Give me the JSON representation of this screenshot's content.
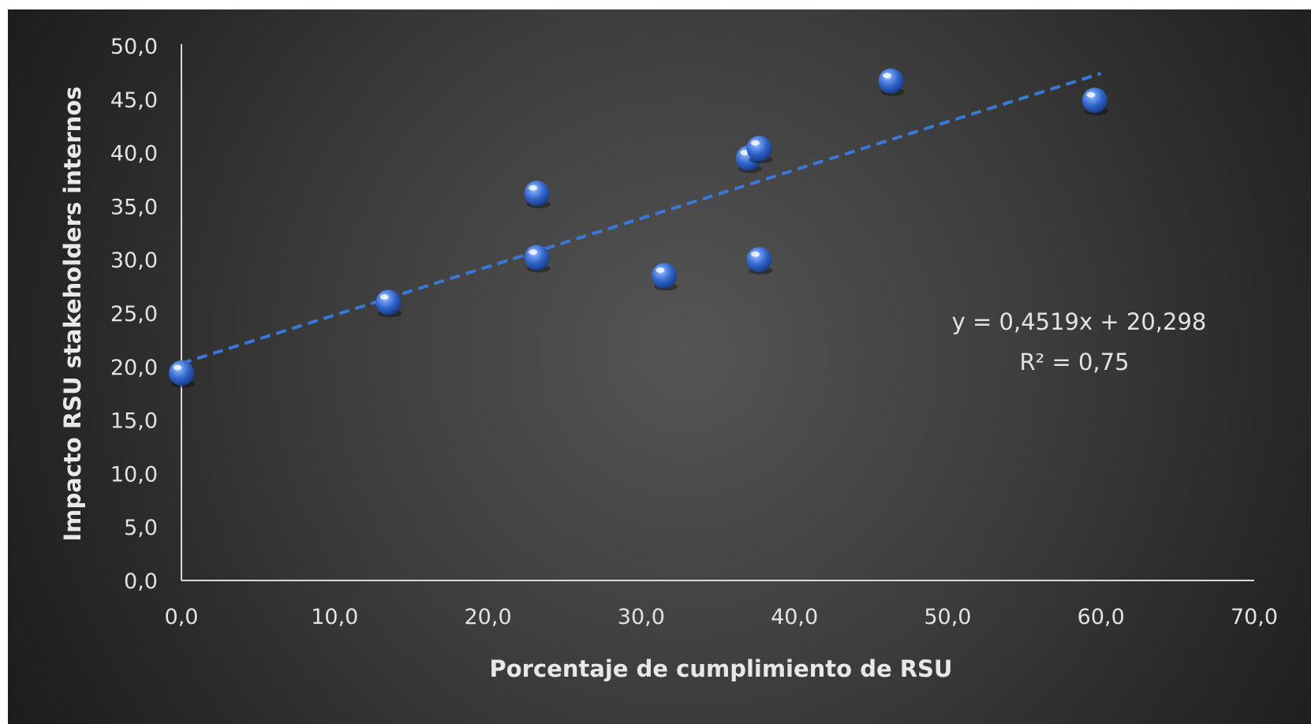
{
  "chart_data": {
    "type": "scatter",
    "title": "",
    "xlabel": "Porcentaje de cumplimiento de RSU",
    "ylabel": "Impacto RSU stakeholders internos",
    "xlim": [
      0,
      70
    ],
    "ylim": [
      0,
      50
    ],
    "x_ticks": [
      "0,0",
      "10,0",
      "20,0",
      "30,0",
      "40,0",
      "50,0",
      "60,0",
      "70,0"
    ],
    "y_ticks": [
      "0,0",
      "5,0",
      "10,0",
      "15,0",
      "20,0",
      "25,0",
      "30,0",
      "35,0",
      "40,0",
      "45,0",
      "50,0"
    ],
    "grid": false,
    "legend": "none",
    "series": [
      {
        "points": [
          [
            0.0,
            19.4
          ],
          [
            13.5,
            26.0
          ],
          [
            23.2,
            36.2
          ],
          [
            23.2,
            30.2
          ],
          [
            31.5,
            28.5
          ],
          [
            37.0,
            39.5
          ],
          [
            37.7,
            40.4
          ],
          [
            37.7,
            30.0
          ],
          [
            46.3,
            46.7
          ],
          [
            59.6,
            44.9
          ]
        ],
        "color": "#3e74d6"
      }
    ],
    "trendline": {
      "type": "linear",
      "slope": 0.4519,
      "intercept": 20.298,
      "x_range": [
        0,
        60
      ],
      "color": "#3a78d8",
      "style": "dashed",
      "equation_text": "y = 0,4519x + 20,298",
      "r2_text": "R² = 0,75"
    }
  }
}
